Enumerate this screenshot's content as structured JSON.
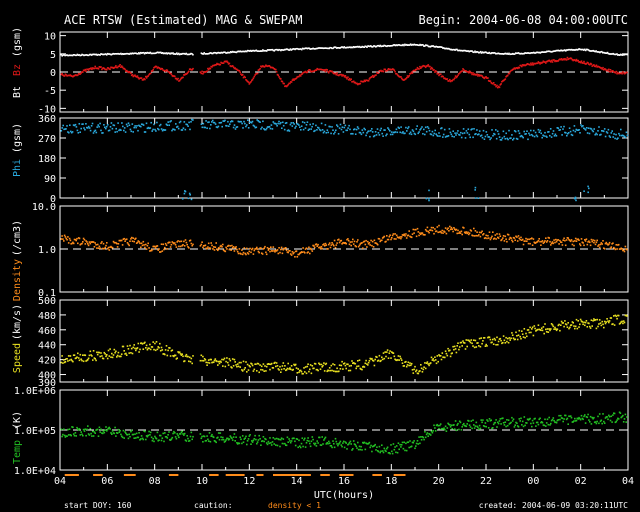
{
  "chart_data": {
    "type": "scatter",
    "title": "ACE RTSW (Estimated) MAG & SWEPAM",
    "begin": "Begin: 2004-06-08 04:00:00UTC",
    "x_label": "UTC(hours)",
    "x_ticks": [
      "04",
      "06",
      "08",
      "10",
      "12",
      "14",
      "16",
      "18",
      "20",
      "22",
      "00",
      "02",
      "04"
    ],
    "x_range": [
      4,
      28
    ],
    "footer": {
      "start": "start DOY: 160",
      "caution": "caution:",
      "density_note": "density < 1",
      "created": "created: 2004-06-09 03:20:11UTC"
    },
    "colors": {
      "bt": "#ffffff",
      "bz": "#e01818",
      "phi": "#2aa9dd",
      "density": "#ff8c1a",
      "speed": "#e8e020",
      "temp": "#22c022",
      "axis": "#ffffff",
      "caution": "#ff8c1a"
    },
    "panels": {
      "mag": {
        "ylabel_bt": "Bt",
        "ylabel_bz": "Bz",
        "ylabel_unit": "(gsm)",
        "y_ticks": [
          "10",
          "5",
          "0",
          "-5",
          "-10"
        ],
        "y_range": [
          -11,
          11
        ],
        "zero_line": 0,
        "bt": [
          [
            4.0,
            4.8
          ],
          [
            5.5,
            5.0
          ],
          [
            7.0,
            5.3
          ],
          [
            8.0,
            5.5
          ],
          [
            9.0,
            5.2
          ],
          [
            9.6,
            5.1
          ],
          [
            10.0,
            5.3
          ],
          [
            11.0,
            5.6
          ],
          [
            12.0,
            6.0
          ],
          [
            13.0,
            6.2
          ],
          [
            14.0,
            6.5
          ],
          [
            15.0,
            6.8
          ],
          [
            16.0,
            7.0
          ],
          [
            17.0,
            7.2
          ],
          [
            18.0,
            7.5
          ],
          [
            19.0,
            7.8
          ],
          [
            20.0,
            7.0
          ],
          [
            21.0,
            6.0
          ],
          [
            22.0,
            5.5
          ],
          [
            23.0,
            5.2
          ],
          [
            24.0,
            5.5
          ],
          [
            25.0,
            6.0
          ],
          [
            26.0,
            6.5
          ],
          [
            27.0,
            5.5
          ],
          [
            27.5,
            5.0
          ]
        ],
        "bz": [
          [
            4.0,
            -0.5
          ],
          [
            4.5,
            -1.0
          ],
          [
            5.0,
            0.5
          ],
          [
            5.5,
            1.5
          ],
          [
            6.0,
            1.0
          ],
          [
            6.5,
            2.0
          ],
          [
            7.0,
            -0.5
          ],
          [
            7.5,
            -2.0
          ],
          [
            8.0,
            1.5
          ],
          [
            8.5,
            0.5
          ],
          [
            9.0,
            -2.0
          ],
          [
            9.5,
            1.0
          ],
          [
            10.0,
            0.0
          ],
          [
            10.5,
            2.0
          ],
          [
            11.0,
            3.0
          ],
          [
            11.5,
            0.5
          ],
          [
            12.0,
            -3.0
          ],
          [
            12.5,
            2.0
          ],
          [
            13.0,
            1.5
          ],
          [
            13.5,
            -4.0
          ],
          [
            14.0,
            -1.0
          ],
          [
            14.5,
            0.5
          ],
          [
            15.0,
            1.0
          ],
          [
            15.5,
            0.0
          ],
          [
            16.0,
            -1.0
          ],
          [
            16.5,
            -3.0
          ],
          [
            17.0,
            -2.0
          ],
          [
            17.5,
            0.5
          ],
          [
            18.0,
            1.0
          ],
          [
            18.5,
            -2.0
          ],
          [
            19.0,
            1.0
          ],
          [
            19.5,
            2.0
          ],
          [
            20.0,
            -0.5
          ],
          [
            20.5,
            -2.5
          ],
          [
            21.0,
            1.0
          ],
          [
            21.5,
            -0.5
          ],
          [
            22.0,
            -1.5
          ],
          [
            22.5,
            -4.0
          ],
          [
            23.0,
            0.5
          ],
          [
            23.5,
            2.0
          ],
          [
            24.0,
            2.5
          ],
          [
            24.5,
            3.0
          ],
          [
            25.0,
            3.5
          ],
          [
            25.5,
            4.0
          ],
          [
            26.0,
            3.0
          ],
          [
            26.5,
            2.0
          ],
          [
            27.0,
            1.0
          ],
          [
            27.5,
            0.0
          ]
        ]
      },
      "phi": {
        "ylabel": "Phi",
        "ylabel_unit": "(gsm)",
        "y_ticks": [
          "360",
          "270",
          "180",
          "90",
          "0"
        ],
        "y_range": [
          0,
          360
        ],
        "values": [
          [
            4.0,
            320
          ],
          [
            5.0,
            315
          ],
          [
            6.0,
            320
          ],
          [
            7.0,
            318
          ],
          [
            8.0,
            325
          ],
          [
            9.0,
            330
          ],
          [
            9.6,
            335
          ],
          [
            10.0,
            330
          ],
          [
            11.0,
            332
          ],
          [
            12.0,
            335
          ],
          [
            13.0,
            330
          ],
          [
            14.0,
            325
          ],
          [
            15.0,
            320
          ],
          [
            16.0,
            310
          ],
          [
            17.0,
            300
          ],
          [
            18.0,
            305
          ],
          [
            19.0,
            310
          ],
          [
            20.0,
            300
          ],
          [
            21.0,
            295
          ],
          [
            22.0,
            290
          ],
          [
            23.0,
            285
          ],
          [
            24.0,
            290
          ],
          [
            25.0,
            300
          ],
          [
            26.0,
            310
          ],
          [
            27.0,
            300
          ],
          [
            27.5,
            290
          ]
        ],
        "low": [
          [
            9.2,
            10
          ],
          [
            9.4,
            20
          ],
          [
            19.5,
            15
          ],
          [
            21.6,
            25
          ],
          [
            25.8,
            15
          ],
          [
            26.2,
            30
          ]
        ]
      },
      "density": {
        "ylabel": "Density",
        "ylabel_unit": "(/cm3)",
        "y_ticks": [
          "10.0",
          "1.0",
          "0.1"
        ],
        "y_range_log10": [
          -1,
          1
        ],
        "ref_line": 1.0,
        "values": [
          [
            4.0,
            1.8
          ],
          [
            5.0,
            1.5
          ],
          [
            6.0,
            1.2
          ],
          [
            7.0,
            1.6
          ],
          [
            8.0,
            1.0
          ],
          [
            9.0,
            1.4
          ],
          [
            10.0,
            1.3
          ],
          [
            11.0,
            1.1
          ],
          [
            12.0,
            0.9
          ],
          [
            13.0,
            1.0
          ],
          [
            14.0,
            0.8
          ],
          [
            15.0,
            1.2
          ],
          [
            16.0,
            1.5
          ],
          [
            17.0,
            1.3
          ],
          [
            18.0,
            2.0
          ],
          [
            19.0,
            2.5
          ],
          [
            20.0,
            3.0
          ],
          [
            21.0,
            2.8
          ],
          [
            22.0,
            2.2
          ],
          [
            23.0,
            1.8
          ],
          [
            24.0,
            1.5
          ],
          [
            25.0,
            1.6
          ],
          [
            26.0,
            1.5
          ],
          [
            27.0,
            1.3
          ],
          [
            27.5,
            1.1
          ]
        ]
      },
      "speed": {
        "ylabel": "Speed",
        "ylabel_unit": "(km/s)",
        "y_ticks": [
          "500",
          "480",
          "460",
          "440",
          "420",
          "400",
          "390"
        ],
        "y_range": [
          390,
          500
        ],
        "values": [
          [
            4.0,
            420
          ],
          [
            5.0,
            425
          ],
          [
            6.0,
            428
          ],
          [
            7.0,
            435
          ],
          [
            8.0,
            440
          ],
          [
            9.0,
            425
          ],
          [
            10.0,
            420
          ],
          [
            11.0,
            418
          ],
          [
            12.0,
            410
          ],
          [
            13.0,
            412
          ],
          [
            14.0,
            408
          ],
          [
            15.0,
            410
          ],
          [
            16.0,
            412
          ],
          [
            17.0,
            415
          ],
          [
            18.0,
            430
          ],
          [
            19.0,
            405
          ],
          [
            20.0,
            425
          ],
          [
            21.0,
            440
          ],
          [
            22.0,
            445
          ],
          [
            23.0,
            450
          ],
          [
            24.0,
            460
          ],
          [
            25.0,
            465
          ],
          [
            26.0,
            470
          ],
          [
            27.0,
            468
          ],
          [
            27.5,
            475
          ]
        ]
      },
      "temp": {
        "ylabel": "Temp",
        "ylabel_unit": "(K)",
        "y_ticks": [
          "1.0E+06",
          "1.0E+05",
          "1.0E+04"
        ],
        "y_range_log10": [
          4,
          6
        ],
        "ref_line": 100000,
        "values": [
          [
            4.0,
            90000
          ],
          [
            5.0,
            100000
          ],
          [
            6.0,
            95000
          ],
          [
            7.0,
            80000
          ],
          [
            8.0,
            70000
          ],
          [
            9.0,
            75000
          ],
          [
            10.0,
            70000
          ],
          [
            11.0,
            65000
          ],
          [
            12.0,
            60000
          ],
          [
            13.0,
            55000
          ],
          [
            14.0,
            50000
          ],
          [
            15.0,
            55000
          ],
          [
            16.0,
            45000
          ],
          [
            17.0,
            40000
          ],
          [
            18.0,
            35000
          ],
          [
            19.0,
            45000
          ],
          [
            20.0,
            120000
          ],
          [
            21.0,
            140000
          ],
          [
            22.0,
            150000
          ],
          [
            23.0,
            160000
          ],
          [
            24.0,
            170000
          ],
          [
            25.0,
            180000
          ],
          [
            26.0,
            190000
          ],
          [
            27.0,
            200000
          ],
          [
            27.5,
            220000
          ]
        ]
      }
    },
    "caution_marks": [
      [
        4.2,
        4.8
      ],
      [
        5.4,
        5.8
      ],
      [
        6.7,
        7.2
      ],
      [
        8.6,
        9.0
      ],
      [
        10.3,
        10.7
      ],
      [
        11.0,
        11.8
      ],
      [
        12.3,
        12.6
      ],
      [
        13.0,
        14.6
      ],
      [
        15.0,
        15.4
      ],
      [
        15.8,
        16.4
      ],
      [
        17.2,
        17.6
      ],
      [
        18.1,
        18.6
      ]
    ]
  }
}
